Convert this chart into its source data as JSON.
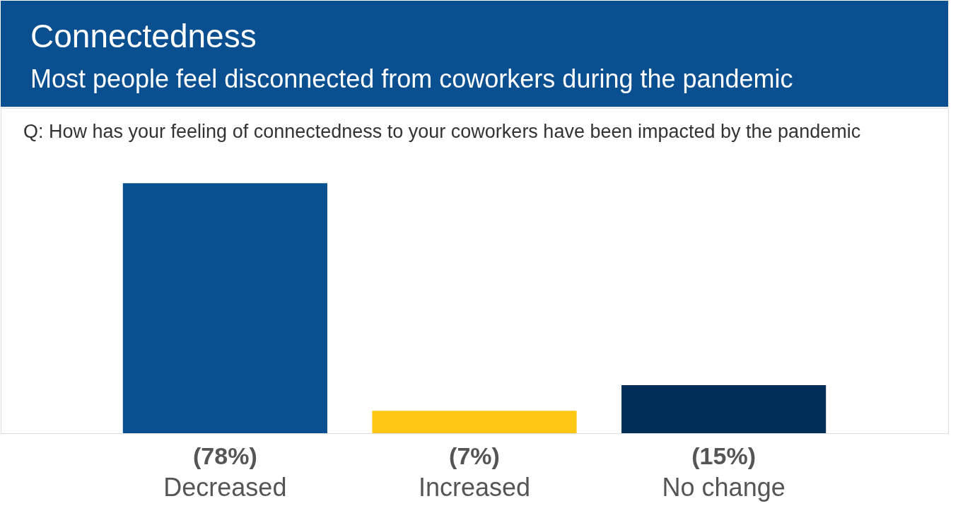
{
  "chart_data": {
    "type": "bar",
    "title": "Connectedness",
    "subtitle": "Most people feel disconnected from coworkers during the pandemic",
    "annotations": [
      "Q: How has your feeling of connectedness to your coworkers have been impacted by the pandemic"
    ],
    "categories": [
      "Decreased",
      "Increased",
      "No change"
    ],
    "values": [
      78,
      7,
      15
    ],
    "colors": [
      "#0a4f8f",
      "#ffc614",
      "#002d57"
    ],
    "value_labels": [
      "(78%)",
      "(7%)",
      "(15%)"
    ]
  }
}
